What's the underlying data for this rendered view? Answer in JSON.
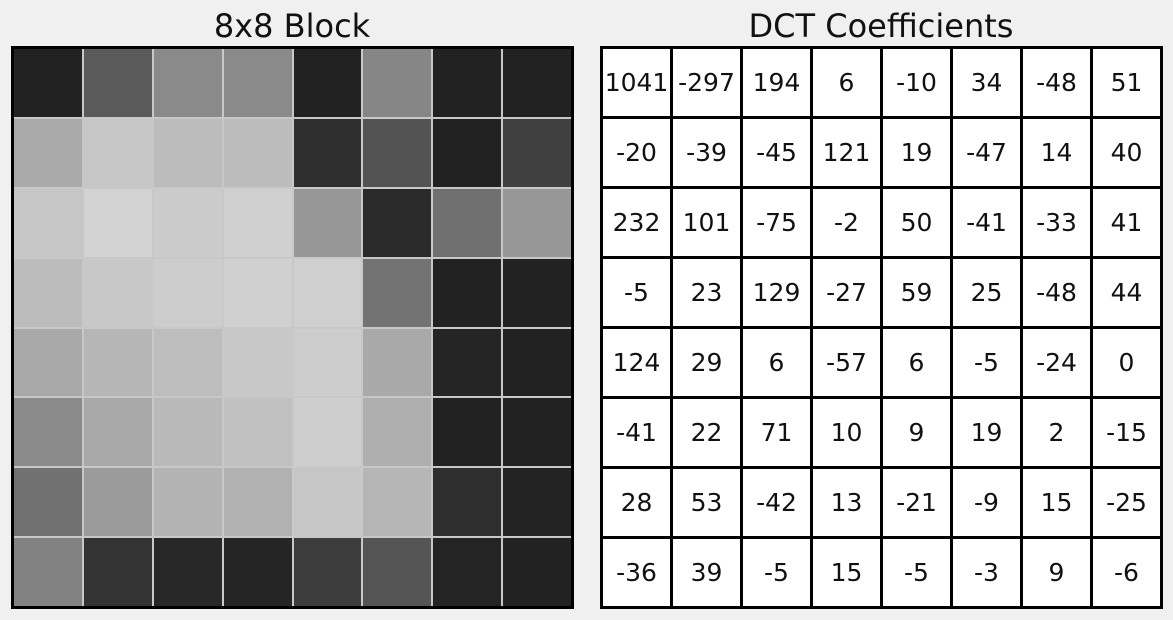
{
  "titles": {
    "left": "8x8 Block",
    "right": "DCT Coefficients"
  },
  "block": {
    "description_values_are_gray_hex": true,
    "pixels": [
      [
        "#222222",
        "#5a5a5a",
        "#8a8a8a",
        "#8a8a8a",
        "#222222",
        "#868686",
        "#222222",
        "#222222"
      ],
      [
        "#aaaaaa",
        "#c6c6c6",
        "#bcbcbc",
        "#bcbcbc",
        "#2f2f2f",
        "#535353",
        "#222222",
        "#404040"
      ],
      [
        "#c6c6c6",
        "#d2d2d2",
        "#cbcbcb",
        "#d0d0d0",
        "#979797",
        "#2a2a2a",
        "#707070",
        "#979797"
      ],
      [
        "#bcbcbc",
        "#c8c8c8",
        "#cdcdcd",
        "#d0d0d0",
        "#cfcfcf",
        "#737373",
        "#222222",
        "#222222"
      ],
      [
        "#a9a9a9",
        "#b6b6b6",
        "#bdbdbd",
        "#c8c8c8",
        "#cdcdcd",
        "#a9a9a9",
        "#252525",
        "#222222"
      ],
      [
        "#8a8a8a",
        "#a9a9a9",
        "#b9b9b9",
        "#c0c0c0",
        "#cecece",
        "#afafaf",
        "#222222",
        "#222222"
      ],
      [
        "#717171",
        "#9b9b9b",
        "#b3b3b3",
        "#b1b1b1",
        "#c6c6c6",
        "#b6b6b6",
        "#2f2f2f",
        "#232323"
      ],
      [
        "#828282",
        "#333333",
        "#282828",
        "#252525",
        "#3d3d3d",
        "#555555",
        "#242424",
        "#222222"
      ]
    ]
  },
  "dct": {
    "rows": [
      [
        "1041",
        "-297",
        "194",
        "6",
        "-10",
        "34",
        "-48",
        "51"
      ],
      [
        "-20",
        "-39",
        "-45",
        "121",
        "19",
        "-47",
        "14",
        "40"
      ],
      [
        "232",
        "101",
        "-75",
        "-2",
        "50",
        "-41",
        "-33",
        "41"
      ],
      [
        "-5",
        "23",
        "129",
        "-27",
        "59",
        "25",
        "-48",
        "44"
      ],
      [
        "124",
        "29",
        "6",
        "-57",
        "6",
        "-5",
        "-24",
        "0"
      ],
      [
        "-41",
        "22",
        "71",
        "10",
        "9",
        "19",
        "2",
        "-15"
      ],
      [
        "28",
        "53",
        "-42",
        "13",
        "-21",
        "-9",
        "15",
        "-25"
      ],
      [
        "-36",
        "39",
        "-5",
        "15",
        "-5",
        "-3",
        "9",
        "-6"
      ]
    ]
  }
}
